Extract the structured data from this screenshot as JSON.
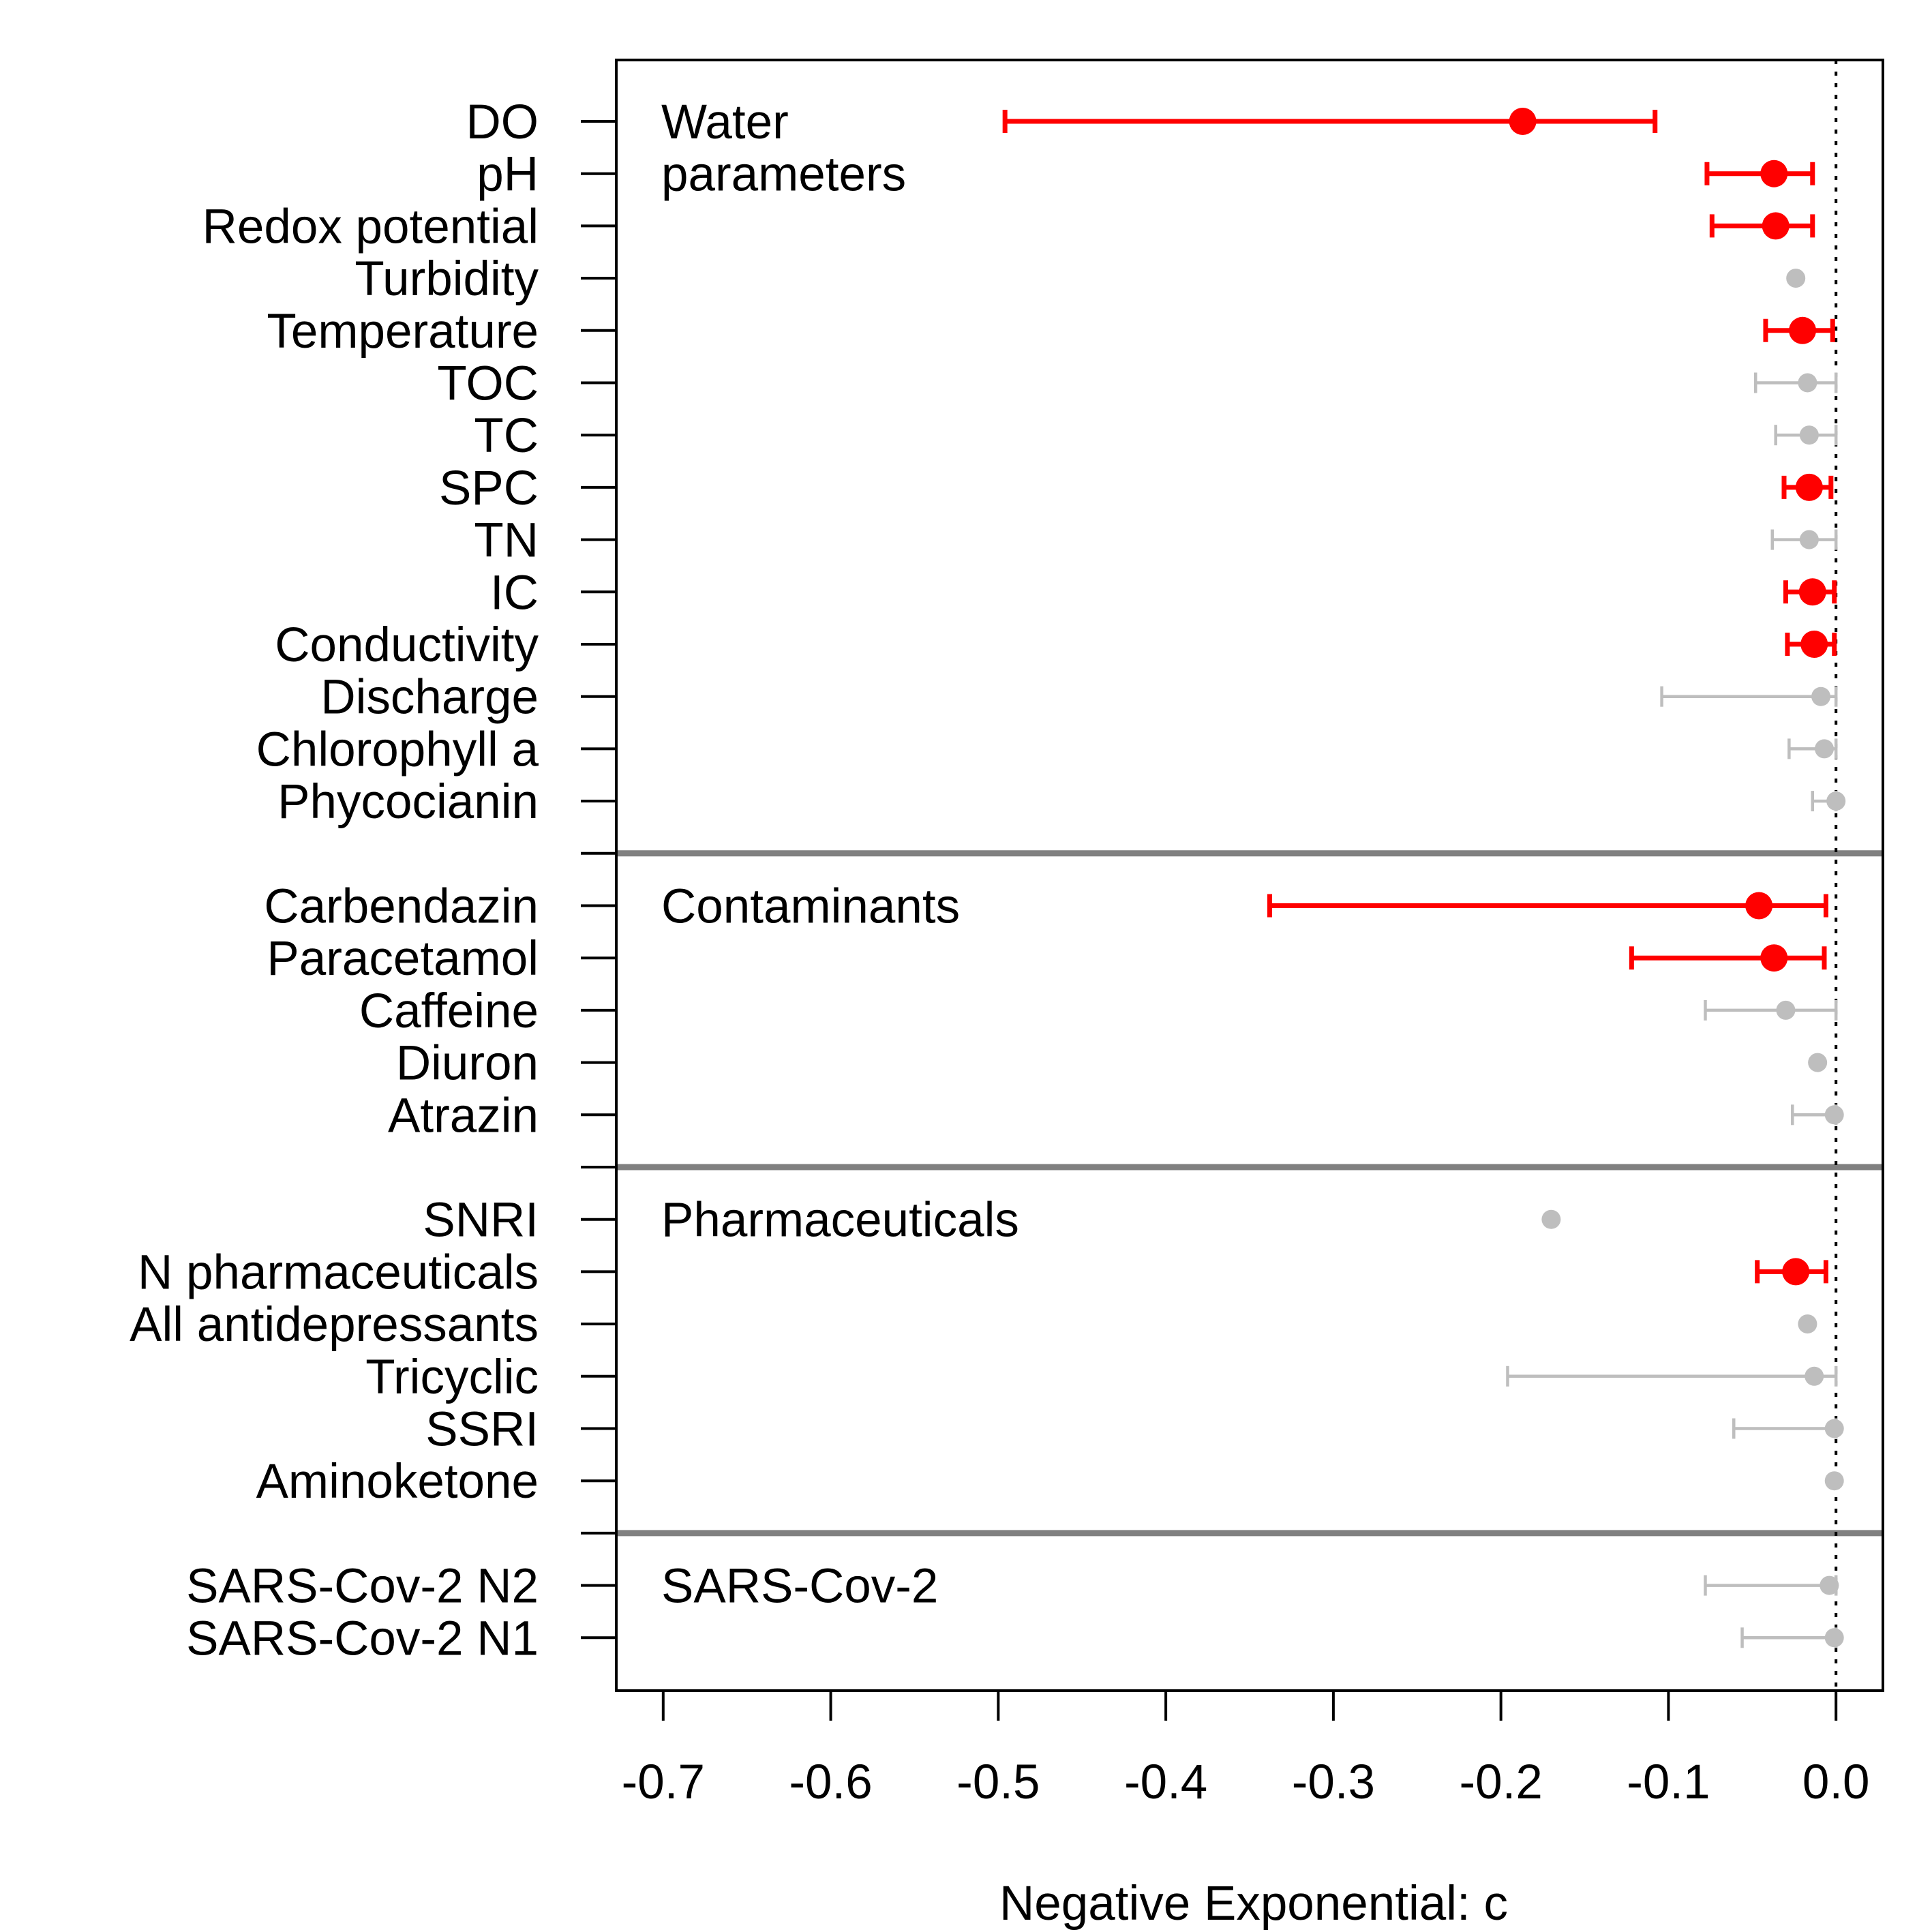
{
  "chart_data": {
    "type": "forest-errorbar",
    "xlabel": "Negative Exponential: c",
    "xlim": [
      -0.728,
      0.028
    ],
    "x_ticks": [
      -0.7,
      -0.6,
      -0.5,
      -0.4,
      -0.3,
      -0.2,
      -0.1,
      0.0
    ],
    "x_tick_labels": [
      "-0.7",
      "-0.6",
      "-0.5",
      "-0.4",
      "-0.3",
      "-0.2",
      "-0.1",
      "0.0"
    ],
    "reference_line": 0.0,
    "grid": false,
    "colors": {
      "significant": "#ff0000",
      "nonsignificant": "#bebebe",
      "divider": "#808080"
    },
    "groups": [
      {
        "title_lines": [
          "Water",
          "parameters"
        ],
        "items": [
          {
            "label": "DO",
            "estimate": -0.187,
            "lower": -0.496,
            "upper": -0.108,
            "significant": true
          },
          {
            "label": "pH",
            "estimate": -0.037,
            "lower": -0.077,
            "upper": -0.014,
            "significant": true
          },
          {
            "label": "Redox potential",
            "estimate": -0.036,
            "lower": -0.074,
            "upper": -0.014,
            "significant": true
          },
          {
            "label": "Turbidity",
            "estimate": -0.024,
            "lower": null,
            "upper": null,
            "significant": false
          },
          {
            "label": "Temperature",
            "estimate": -0.02,
            "lower": -0.042,
            "upper": -0.002,
            "significant": true
          },
          {
            "label": "TOC",
            "estimate": -0.017,
            "lower": -0.048,
            "upper": 0.0,
            "significant": false
          },
          {
            "label": "TC",
            "estimate": -0.016,
            "lower": -0.036,
            "upper": 0.0,
            "significant": false
          },
          {
            "label": "SPC",
            "estimate": -0.016,
            "lower": -0.031,
            "upper": -0.003,
            "significant": true
          },
          {
            "label": "TN",
            "estimate": -0.016,
            "lower": -0.038,
            "upper": 0.0,
            "significant": false
          },
          {
            "label": "IC",
            "estimate": -0.014,
            "lower": -0.03,
            "upper": -0.001,
            "significant": true
          },
          {
            "label": "Conductivity",
            "estimate": -0.013,
            "lower": -0.029,
            "upper": -0.001,
            "significant": true
          },
          {
            "label": "Discharge",
            "estimate": -0.009,
            "lower": -0.104,
            "upper": 0.0,
            "significant": false
          },
          {
            "label": "Chlorophyll a",
            "estimate": -0.007,
            "lower": -0.028,
            "upper": 0.0,
            "significant": false
          },
          {
            "label": "Phycocianin",
            "estimate": 0.0,
            "lower": -0.014,
            "upper": 0.0,
            "significant": false
          }
        ]
      },
      {
        "title_lines": [
          "Contaminants"
        ],
        "items": [
          {
            "label": "Carbendazin",
            "estimate": -0.046,
            "lower": -0.338,
            "upper": -0.006,
            "significant": true
          },
          {
            "label": "Paracetamol",
            "estimate": -0.037,
            "lower": -0.122,
            "upper": -0.007,
            "significant": true
          },
          {
            "label": "Caffeine",
            "estimate": -0.03,
            "lower": -0.078,
            "upper": 0.0,
            "significant": false
          },
          {
            "label": "Diuron",
            "estimate": -0.011,
            "lower": null,
            "upper": null,
            "significant": false
          },
          {
            "label": "Atrazin",
            "estimate": -0.001,
            "lower": -0.026,
            "upper": 0.0,
            "significant": false
          }
        ]
      },
      {
        "title_lines": [
          "Pharmaceuticals"
        ],
        "items": [
          {
            "label": "SNRI",
            "estimate": -0.17,
            "lower": null,
            "upper": null,
            "significant": false
          },
          {
            "label": "N pharmaceuticals",
            "estimate": -0.024,
            "lower": -0.047,
            "upper": -0.006,
            "significant": true
          },
          {
            "label": "All antidepressants",
            "estimate": -0.017,
            "lower": null,
            "upper": null,
            "significant": false
          },
          {
            "label": "Tricyclic",
            "estimate": -0.013,
            "lower": -0.196,
            "upper": 0.0,
            "significant": false
          },
          {
            "label": "SSRI",
            "estimate": -0.001,
            "lower": -0.061,
            "upper": 0.0,
            "significant": false
          },
          {
            "label": "Aminoketone",
            "estimate": -0.001,
            "lower": null,
            "upper": null,
            "significant": false
          }
        ]
      },
      {
        "title_lines": [
          "SARS-Cov-2"
        ],
        "items": [
          {
            "label": "SARS-Cov-2 N2",
            "estimate": -0.004,
            "lower": -0.078,
            "upper": 0.0,
            "significant": false
          },
          {
            "label": "SARS-Cov-2 N1",
            "estimate": -0.001,
            "lower": -0.056,
            "upper": 0.0,
            "significant": false
          }
        ]
      }
    ]
  }
}
